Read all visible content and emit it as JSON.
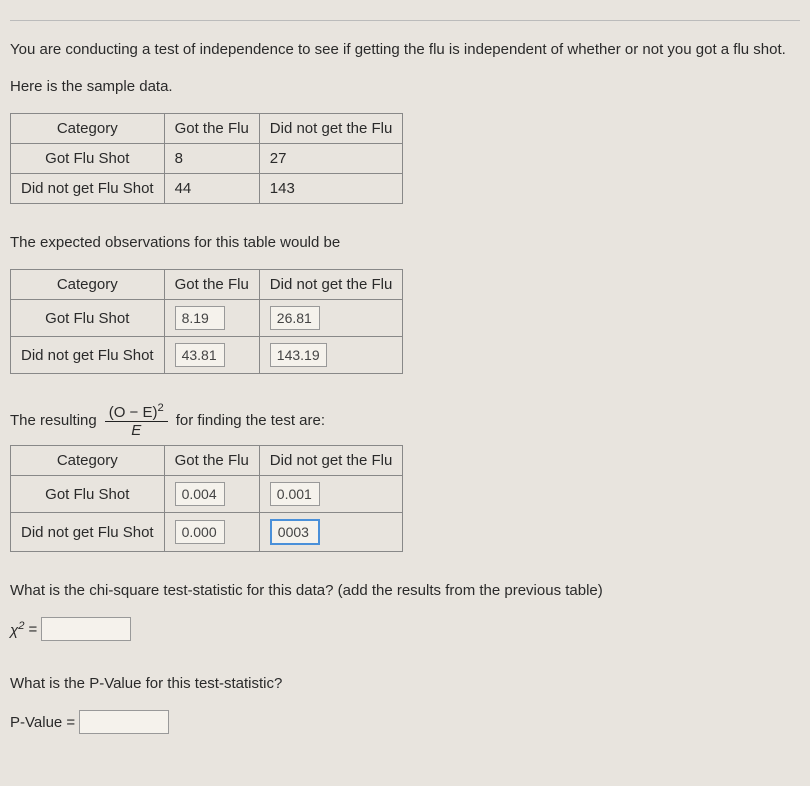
{
  "intro": "You are conducting a test of independence to see if getting the flu is independent of whether or not you got a flu shot.",
  "sample_label": "Here is the sample data.",
  "headers": {
    "category": "Category",
    "col1": "Got the Flu",
    "col2": "Did not get the Flu",
    "row1": "Got Flu Shot",
    "row2": "Did not get Flu Shot"
  },
  "observed": {
    "r1c1": "8",
    "r1c2": "27",
    "r2c1": "44",
    "r2c2": "143"
  },
  "expected_label": "The expected observations for this table would be",
  "expected": {
    "r1c1": "8.19",
    "r1c2": "26.81",
    "r2c1": "43.81",
    "r2c2": "143.19"
  },
  "resulting_prefix": "The resulting",
  "resulting_suffix": "for finding the test are:",
  "formula": {
    "num": "(O − E)",
    "exp": "2",
    "den": "E"
  },
  "chisq": {
    "r1c1": "0.004",
    "r1c2": "0.001",
    "r2c1": "0.000",
    "r2c2": "0003"
  },
  "q_teststat": "What is the chi-square test-statistic for this data? (add the results from the previous table)",
  "chi_symbol": "χ",
  "eq": "=",
  "q_pvalue": "What is the P-Value for this test-statistic?",
  "pvalue_label": "P-Value ="
}
